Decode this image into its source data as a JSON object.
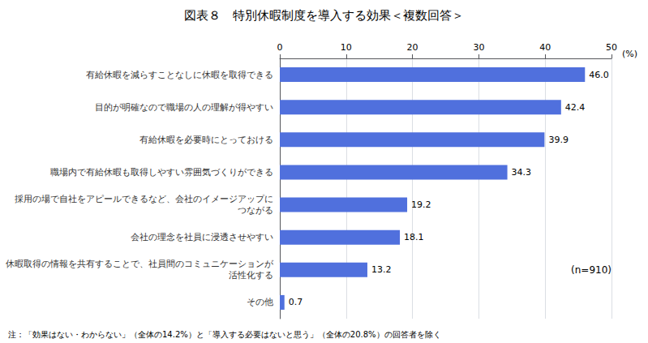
{
  "chart_data": {
    "type": "bar",
    "orientation": "horizontal",
    "title": "図表８　特別休暇制度を導入する効果＜複数回答＞",
    "categories": [
      "有給休暇を減らすことなしに休暇を取得できる",
      "目的が明確なので職場の人の理解が得やすい",
      "有給休暇を必要時にとっておける",
      "職場内で有給休暇も取得しやすい雰囲気づくりができる",
      "採用の場で自社をアピールできるなど、会社のイメージアップに\nつながる",
      "会社の理念を社員に浸透させやすい",
      "休暇取得の情報を共有することで、社員間のコミュニケーションが\n活性化する",
      "その他"
    ],
    "values": [
      46.0,
      42.4,
      39.9,
      34.3,
      19.2,
      18.1,
      13.2,
      0.7
    ],
    "value_labels": [
      "46.0",
      "42.4",
      "39.9",
      "34.3",
      "19.2",
      "18.1",
      "13.2",
      "0.7"
    ],
    "data_labels": true,
    "xlabel": "(%)",
    "xlim": [
      0,
      50
    ],
    "xticks": [
      0,
      10,
      20,
      30,
      40,
      50
    ],
    "grid": true,
    "annotations": [
      "(n=910)",
      "注：「効果はない・わからない」（全体の14.2%）と「導入する必要はないと思う」（全体の20.8%）の回答者を除く"
    ]
  }
}
